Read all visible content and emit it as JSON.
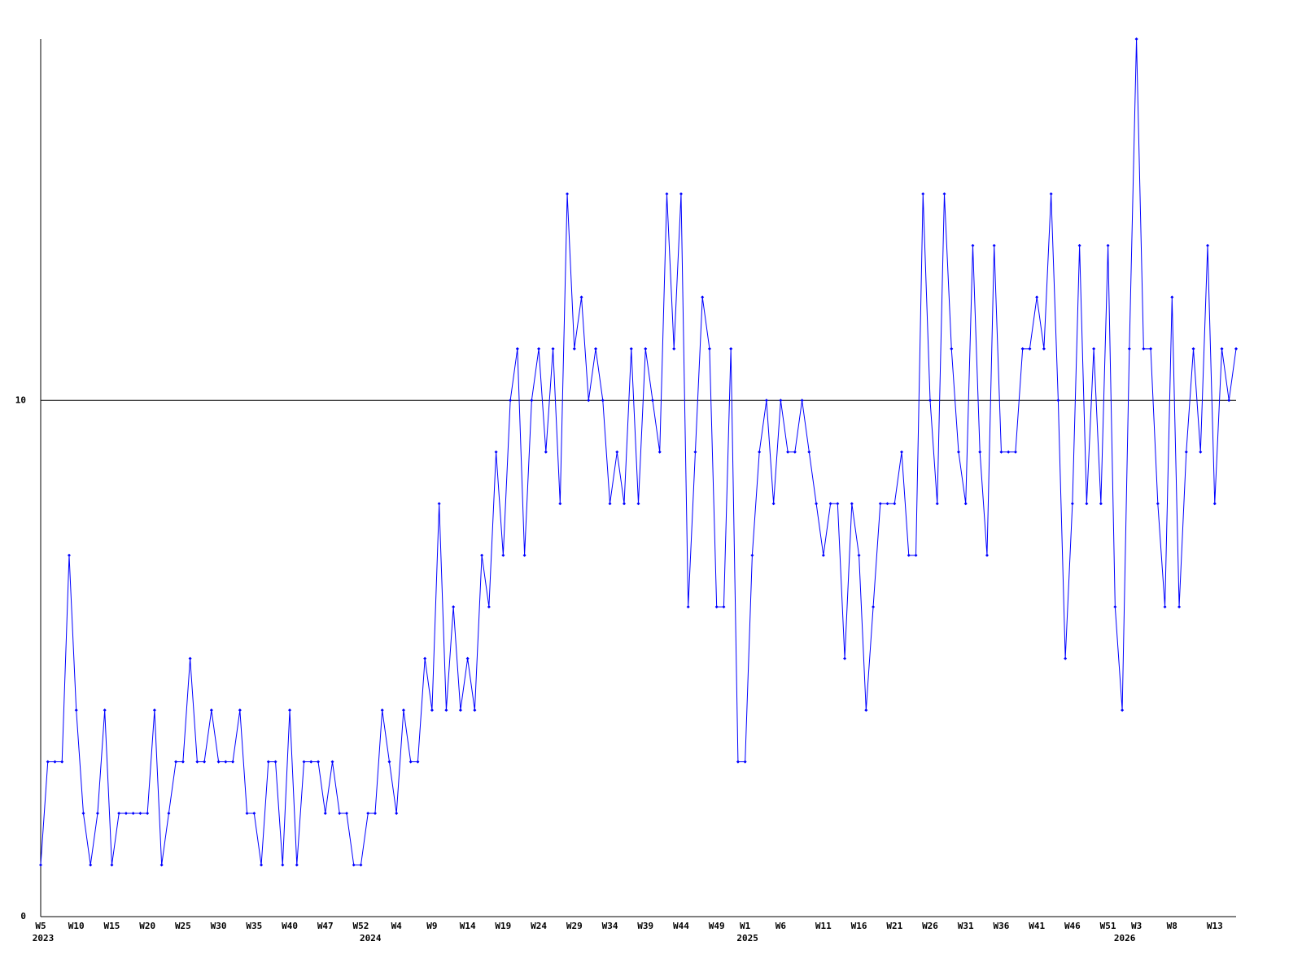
{
  "chart_data": {
    "type": "line",
    "categories": [
      "W5",
      null,
      null,
      null,
      null,
      "W10",
      null,
      null,
      null,
      null,
      "W15",
      null,
      null,
      null,
      null,
      "W20",
      null,
      null,
      null,
      null,
      "W25",
      null,
      null,
      null,
      null,
      "W30",
      null,
      null,
      null,
      null,
      "W35",
      null,
      null,
      null,
      null,
      "W40",
      null,
      null,
      null,
      null,
      "W47",
      null,
      null,
      null,
      null,
      "W52",
      null,
      null,
      null,
      null,
      "W4",
      null,
      null,
      null,
      null,
      "W9",
      null,
      null,
      null,
      null,
      "W14",
      null,
      null,
      null,
      null,
      "W19",
      null,
      null,
      null,
      null,
      "W24",
      null,
      null,
      null,
      null,
      "W29",
      null,
      null,
      null,
      null,
      "W34",
      null,
      null,
      null,
      null,
      "W39",
      null,
      null,
      null,
      null,
      "W44",
      null,
      null,
      null,
      null,
      "W49",
      null,
      null,
      null,
      "W1",
      null,
      null,
      null,
      null,
      "W6",
      null,
      null,
      null,
      null,
      null,
      "W11",
      null,
      null,
      null,
      null,
      "W16",
      null,
      null,
      null,
      null,
      "W21",
      null,
      null,
      null,
      null,
      "W26",
      null,
      null,
      null,
      null,
      "W31",
      null,
      null,
      null,
      null,
      "W36",
      null,
      null,
      null,
      null,
      "W41",
      null,
      null,
      null,
      null,
      "W46",
      null,
      null,
      null,
      null,
      "W51",
      null,
      null,
      null,
      "W3",
      null,
      null,
      null,
      null,
      "W8",
      null,
      null,
      null,
      null,
      null,
      "W13",
      null,
      null,
      null
    ],
    "category_years": [
      "2023",
      null,
      null,
      null,
      null,
      null,
      null,
      null,
      null,
      null,
      null,
      null,
      null,
      null,
      null,
      null,
      null,
      null,
      null,
      null,
      null,
      null,
      null,
      null,
      null,
      null,
      null,
      null,
      null,
      null,
      null,
      null,
      null,
      null,
      null,
      null,
      null,
      null,
      null,
      null,
      null,
      null,
      null,
      null,
      null,
      null,
      "2024",
      null,
      null,
      null,
      null,
      null,
      null,
      null,
      null,
      null,
      null,
      null,
      null,
      null,
      null,
      null,
      null,
      null,
      null,
      null,
      null,
      null,
      null,
      null,
      null,
      null,
      null,
      null,
      null,
      null,
      null,
      null,
      null,
      null,
      null,
      null,
      null,
      null,
      null,
      null,
      null,
      null,
      null,
      null,
      null,
      null,
      null,
      null,
      null,
      null,
      null,
      null,
      null,
      "2025",
      null,
      null,
      null,
      null,
      null,
      null,
      null,
      null,
      null,
      null,
      null,
      null,
      null,
      null,
      null,
      null,
      null,
      null,
      null,
      null,
      null,
      null,
      null,
      null,
      null,
      null,
      null,
      null,
      null,
      null,
      null,
      null,
      null,
      null,
      null,
      null,
      null,
      null,
      null,
      null,
      null,
      null,
      null,
      null,
      null,
      null,
      null,
      null,
      null,
      null,
      null,
      null,
      "2026",
      null,
      null,
      null,
      null,
      null,
      null,
      null,
      null,
      null,
      null,
      null,
      null,
      null,
      null,
      null,
      null
    ],
    "series": [
      {
        "color": "#0000ff",
        "values": [
          1,
          3,
          3,
          3,
          7,
          4,
          2,
          1,
          2,
          4,
          1,
          2,
          2,
          2,
          2,
          2,
          4,
          1,
          2,
          3,
          3,
          5,
          3,
          3,
          4,
          3,
          3,
          3,
          4,
          2,
          2,
          1,
          3,
          3,
          1,
          4,
          1,
          3,
          3,
          3,
          2,
          3,
          2,
          2,
          1,
          1,
          2,
          2,
          4,
          3,
          2,
          4,
          3,
          3,
          5,
          4,
          8,
          4,
          6,
          4,
          5,
          4,
          7,
          6,
          9,
          7,
          10,
          11,
          7,
          10,
          11,
          9,
          11,
          8,
          14,
          11,
          12,
          10,
          11,
          10,
          8,
          9,
          8,
          11,
          8,
          11,
          10,
          9,
          14,
          11,
          14,
          6,
          9,
          12,
          11,
          6,
          6,
          11,
          3,
          3,
          7,
          9,
          10,
          8,
          10,
          9,
          9,
          10,
          9,
          8,
          7,
          8,
          8,
          5,
          8,
          7,
          4,
          6,
          8,
          8,
          8,
          9,
          7,
          7,
          14,
          10,
          8,
          14,
          11,
          9,
          8,
          13,
          9,
          7,
          13,
          9,
          9,
          9,
          11,
          11,
          12,
          11,
          14,
          10,
          5,
          8,
          13,
          8,
          11,
          8,
          13,
          6,
          4,
          11,
          17,
          11,
          11,
          8,
          6,
          12,
          6,
          9,
          11,
          9,
          13,
          8,
          11,
          10,
          11
        ]
      }
    ],
    "ylim": [
      0,
      17
    ],
    "yticks": [
      0,
      10
    ],
    "grid": true
  }
}
